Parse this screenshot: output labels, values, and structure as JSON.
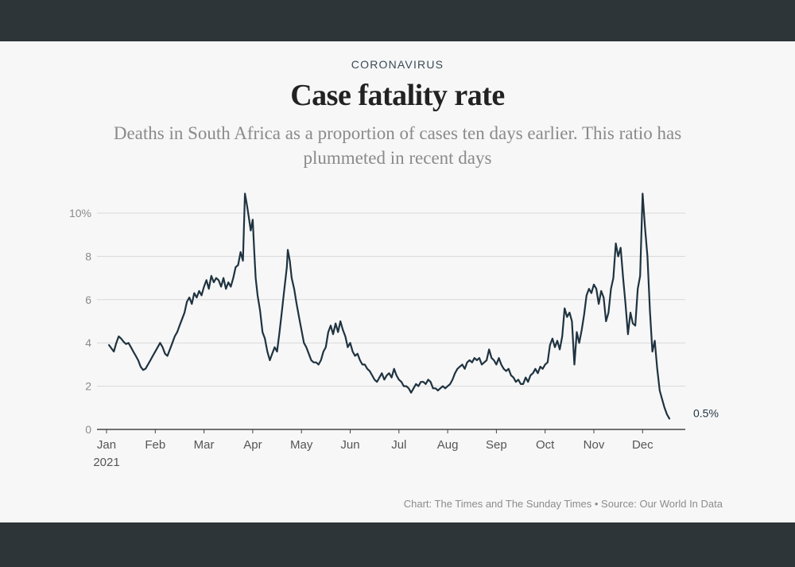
{
  "kicker": "CORONAVIRUS",
  "title": "Case fatality rate",
  "subtitle": "Deaths in South Africa as a proportion of cases ten days earlier. This ratio has plummeted in recent days",
  "credit": "Chart: The Times and The Sunday Times • Source: Our World In Data",
  "colors": {
    "line": "#1f3340",
    "grid": "#d9d9d9",
    "background": "#f7f7f7",
    "frame": "#2e3539"
  },
  "chart_data": {
    "type": "line",
    "title": "Case fatality rate",
    "xlabel": "",
    "ylabel": "",
    "ylim": [
      0,
      10
    ],
    "y_ticks": [
      {
        "value": 0,
        "label": "0"
      },
      {
        "value": 2,
        "label": "2"
      },
      {
        "value": 4,
        "label": "4"
      },
      {
        "value": 6,
        "label": "6"
      },
      {
        "value": 8,
        "label": "8"
      },
      {
        "value": 10,
        "label": "10%"
      }
    ],
    "x_ticks": [
      {
        "month": 0,
        "label": "Jan",
        "sublabel": "2021"
      },
      {
        "month": 1,
        "label": "Feb"
      },
      {
        "month": 2,
        "label": "Mar"
      },
      {
        "month": 3,
        "label": "Apr"
      },
      {
        "month": 4,
        "label": "May"
      },
      {
        "month": 5,
        "label": "Jun"
      },
      {
        "month": 6,
        "label": "Jul"
      },
      {
        "month": 7,
        "label": "Aug"
      },
      {
        "month": 8,
        "label": "Sep"
      },
      {
        "month": 9,
        "label": "Oct"
      },
      {
        "month": 10,
        "label": "Nov"
      },
      {
        "month": 11,
        "label": "Dec"
      }
    ],
    "end_label": "0.5%",
    "series": [
      {
        "name": "Case fatality rate (%)",
        "x_unit": "months since 1 Jan 2021",
        "points": [
          [
            0.05,
            3.9
          ],
          [
            0.1,
            3.75
          ],
          [
            0.15,
            3.6
          ],
          [
            0.2,
            4.0
          ],
          [
            0.25,
            4.3
          ],
          [
            0.3,
            4.2
          ],
          [
            0.35,
            4.05
          ],
          [
            0.4,
            3.95
          ],
          [
            0.45,
            4.0
          ],
          [
            0.5,
            3.8
          ],
          [
            0.55,
            3.6
          ],
          [
            0.6,
            3.4
          ],
          [
            0.65,
            3.2
          ],
          [
            0.7,
            2.9
          ],
          [
            0.75,
            2.75
          ],
          [
            0.8,
            2.8
          ],
          [
            0.85,
            3.0
          ],
          [
            0.9,
            3.2
          ],
          [
            0.95,
            3.4
          ],
          [
            1.0,
            3.6
          ],
          [
            1.05,
            3.8
          ],
          [
            1.1,
            4.0
          ],
          [
            1.15,
            3.8
          ],
          [
            1.2,
            3.5
          ],
          [
            1.25,
            3.4
          ],
          [
            1.3,
            3.7
          ],
          [
            1.35,
            4.0
          ],
          [
            1.4,
            4.3
          ],
          [
            1.45,
            4.5
          ],
          [
            1.5,
            4.8
          ],
          [
            1.55,
            5.1
          ],
          [
            1.6,
            5.4
          ],
          [
            1.65,
            5.9
          ],
          [
            1.7,
            6.1
          ],
          [
            1.75,
            5.8
          ],
          [
            1.8,
            6.3
          ],
          [
            1.85,
            6.1
          ],
          [
            1.9,
            6.4
          ],
          [
            1.95,
            6.2
          ],
          [
            2.0,
            6.6
          ],
          [
            2.05,
            6.9
          ],
          [
            2.1,
            6.5
          ],
          [
            2.15,
            7.1
          ],
          [
            2.2,
            6.8
          ],
          [
            2.25,
            7.0
          ],
          [
            2.3,
            6.9
          ],
          [
            2.35,
            6.6
          ],
          [
            2.4,
            7.0
          ],
          [
            2.45,
            6.5
          ],
          [
            2.5,
            6.8
          ],
          [
            2.55,
            6.6
          ],
          [
            2.6,
            7.0
          ],
          [
            2.65,
            7.5
          ],
          [
            2.7,
            7.6
          ],
          [
            2.75,
            8.2
          ],
          [
            2.8,
            7.8
          ],
          [
            2.84,
            10.9
          ],
          [
            2.88,
            10.4
          ],
          [
            2.92,
            9.8
          ],
          [
            2.96,
            9.2
          ],
          [
            3.0,
            9.7
          ],
          [
            3.03,
            8.3
          ],
          [
            3.06,
            7.0
          ],
          [
            3.1,
            6.2
          ],
          [
            3.15,
            5.5
          ],
          [
            3.2,
            4.5
          ],
          [
            3.25,
            4.2
          ],
          [
            3.3,
            3.6
          ],
          [
            3.35,
            3.2
          ],
          [
            3.4,
            3.5
          ],
          [
            3.45,
            3.8
          ],
          [
            3.5,
            3.6
          ],
          [
            3.55,
            4.5
          ],
          [
            3.6,
            5.5
          ],
          [
            3.65,
            6.5
          ],
          [
            3.7,
            7.5
          ],
          [
            3.72,
            8.3
          ],
          [
            3.76,
            7.8
          ],
          [
            3.8,
            7.0
          ],
          [
            3.85,
            6.5
          ],
          [
            3.9,
            5.8
          ],
          [
            3.95,
            5.2
          ],
          [
            4.0,
            4.6
          ],
          [
            4.05,
            4.0
          ],
          [
            4.1,
            3.8
          ],
          [
            4.15,
            3.5
          ],
          [
            4.2,
            3.2
          ],
          [
            4.25,
            3.1
          ],
          [
            4.3,
            3.1
          ],
          [
            4.35,
            3.0
          ],
          [
            4.4,
            3.2
          ],
          [
            4.45,
            3.6
          ],
          [
            4.5,
            3.8
          ],
          [
            4.55,
            4.5
          ],
          [
            4.6,
            4.8
          ],
          [
            4.65,
            4.4
          ],
          [
            4.7,
            4.9
          ],
          [
            4.75,
            4.5
          ],
          [
            4.8,
            5.0
          ],
          [
            4.85,
            4.6
          ],
          [
            4.9,
            4.3
          ],
          [
            4.95,
            3.8
          ],
          [
            5.0,
            4.0
          ],
          [
            5.05,
            3.6
          ],
          [
            5.1,
            3.4
          ],
          [
            5.15,
            3.5
          ],
          [
            5.2,
            3.2
          ],
          [
            5.25,
            3.0
          ],
          [
            5.3,
            3.0
          ],
          [
            5.35,
            2.8
          ],
          [
            5.4,
            2.7
          ],
          [
            5.45,
            2.5
          ],
          [
            5.5,
            2.3
          ],
          [
            5.55,
            2.2
          ],
          [
            5.6,
            2.4
          ],
          [
            5.65,
            2.6
          ],
          [
            5.7,
            2.3
          ],
          [
            5.75,
            2.5
          ],
          [
            5.8,
            2.6
          ],
          [
            5.85,
            2.4
          ],
          [
            5.9,
            2.8
          ],
          [
            5.95,
            2.5
          ],
          [
            6.0,
            2.3
          ],
          [
            6.05,
            2.2
          ],
          [
            6.1,
            2.0
          ],
          [
            6.15,
            2.0
          ],
          [
            6.2,
            1.9
          ],
          [
            6.25,
            1.7
          ],
          [
            6.3,
            1.9
          ],
          [
            6.35,
            2.1
          ],
          [
            6.4,
            2.0
          ],
          [
            6.45,
            2.2
          ],
          [
            6.5,
            2.2
          ],
          [
            6.55,
            2.1
          ],
          [
            6.6,
            2.3
          ],
          [
            6.65,
            2.2
          ],
          [
            6.7,
            1.9
          ],
          [
            6.75,
            1.9
          ],
          [
            6.8,
            1.8
          ],
          [
            6.85,
            1.9
          ],
          [
            6.9,
            2.0
          ],
          [
            6.95,
            1.9
          ],
          [
            7.0,
            2.0
          ],
          [
            7.05,
            2.1
          ],
          [
            7.1,
            2.3
          ],
          [
            7.15,
            2.6
          ],
          [
            7.2,
            2.8
          ],
          [
            7.25,
            2.9
          ],
          [
            7.3,
            3.0
          ],
          [
            7.35,
            2.8
          ],
          [
            7.4,
            3.1
          ],
          [
            7.45,
            3.2
          ],
          [
            7.5,
            3.1
          ],
          [
            7.55,
            3.3
          ],
          [
            7.6,
            3.2
          ],
          [
            7.65,
            3.3
          ],
          [
            7.7,
            3.0
          ],
          [
            7.75,
            3.1
          ],
          [
            7.8,
            3.2
          ],
          [
            7.85,
            3.7
          ],
          [
            7.9,
            3.3
          ],
          [
            7.95,
            3.2
          ],
          [
            8.0,
            3.0
          ],
          [
            8.05,
            3.3
          ],
          [
            8.1,
            3.0
          ],
          [
            8.15,
            2.8
          ],
          [
            8.2,
            2.7
          ],
          [
            8.25,
            2.8
          ],
          [
            8.3,
            2.5
          ],
          [
            8.35,
            2.4
          ],
          [
            8.4,
            2.2
          ],
          [
            8.45,
            2.3
          ],
          [
            8.5,
            2.1
          ],
          [
            8.55,
            2.1
          ],
          [
            8.6,
            2.4
          ],
          [
            8.65,
            2.2
          ],
          [
            8.7,
            2.5
          ],
          [
            8.75,
            2.6
          ],
          [
            8.8,
            2.8
          ],
          [
            8.85,
            2.6
          ],
          [
            8.9,
            2.9
          ],
          [
            8.95,
            2.8
          ],
          [
            9.0,
            3.0
          ],
          [
            9.05,
            3.1
          ],
          [
            9.1,
            3.9
          ],
          [
            9.15,
            4.2
          ],
          [
            9.2,
            3.8
          ],
          [
            9.25,
            4.1
          ],
          [
            9.3,
            3.7
          ],
          [
            9.35,
            4.3
          ],
          [
            9.4,
            5.6
          ],
          [
            9.45,
            5.2
          ],
          [
            9.5,
            5.4
          ],
          [
            9.55,
            5.0
          ],
          [
            9.6,
            3.0
          ],
          [
            9.65,
            4.5
          ],
          [
            9.7,
            4.0
          ],
          [
            9.75,
            4.6
          ],
          [
            9.8,
            5.3
          ],
          [
            9.85,
            6.2
          ],
          [
            9.9,
            6.5
          ],
          [
            9.95,
            6.3
          ],
          [
            10.0,
            6.7
          ],
          [
            10.05,
            6.5
          ],
          [
            10.1,
            5.8
          ],
          [
            10.15,
            6.4
          ],
          [
            10.2,
            6.1
          ],
          [
            10.25,
            5.0
          ],
          [
            10.3,
            5.4
          ],
          [
            10.35,
            6.5
          ],
          [
            10.4,
            7.0
          ],
          [
            10.45,
            8.6
          ],
          [
            10.5,
            8.0
          ],
          [
            10.55,
            8.4
          ],
          [
            10.6,
            7.0
          ],
          [
            10.65,
            5.8
          ],
          [
            10.7,
            4.4
          ],
          [
            10.75,
            5.4
          ],
          [
            10.8,
            4.9
          ],
          [
            10.85,
            4.8
          ],
          [
            10.9,
            6.5
          ],
          [
            10.95,
            7.1
          ],
          [
            11.0,
            10.9
          ],
          [
            11.05,
            9.3
          ],
          [
            11.1,
            8.0
          ],
          [
            11.15,
            5.5
          ],
          [
            11.2,
            3.6
          ],
          [
            11.25,
            4.1
          ],
          [
            11.3,
            2.8
          ],
          [
            11.35,
            1.8
          ],
          [
            11.4,
            1.4
          ],
          [
            11.45,
            1.0
          ],
          [
            11.5,
            0.7
          ],
          [
            11.55,
            0.5
          ]
        ]
      }
    ]
  }
}
